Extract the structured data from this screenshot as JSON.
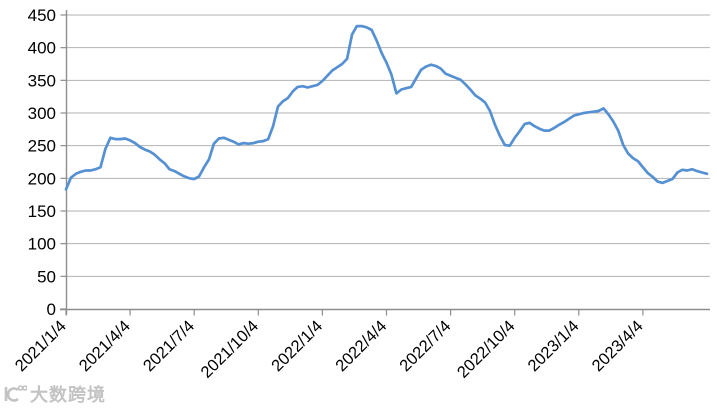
{
  "watermark": {
    "text": "大数跨境",
    "logo_icon": "dashu-kuajing-logo"
  },
  "chart_data": {
    "type": "line",
    "title": "",
    "legend_position": "none",
    "grid": true,
    "x_frequency": "weekly",
    "x_start": "2021/1/4",
    "x_end": "2023/6/26",
    "ylim": [
      0,
      450
    ],
    "yticks": [
      0,
      50,
      100,
      150,
      200,
      250,
      300,
      350,
      400,
      450
    ],
    "xticks": [
      {
        "label": "2021/1/4",
        "index": 0
      },
      {
        "label": "2021/4/4",
        "index": 13
      },
      {
        "label": "2021/7/4",
        "index": 26
      },
      {
        "label": "2021/10/4",
        "index": 39
      },
      {
        "label": "2022/1/4",
        "index": 52
      },
      {
        "label": "2022/4/4",
        "index": 65
      },
      {
        "label": "2022/7/4",
        "index": 78
      },
      {
        "label": "2022/10/4",
        "index": 91
      },
      {
        "label": "2023/1/4",
        "index": 104
      },
      {
        "label": "2023/4/4",
        "index": 117
      }
    ],
    "values": [
      183,
      201,
      207,
      210,
      212,
      212,
      214,
      217,
      245,
      262,
      260,
      260,
      261,
      258,
      254,
      248,
      244,
      241,
      236,
      229,
      223,
      214,
      211,
      207,
      203,
      200,
      199,
      203,
      217,
      229,
      253,
      261,
      262,
      259,
      256,
      252,
      254,
      253,
      254,
      256,
      257,
      260,
      280,
      310,
      318,
      323,
      333,
      340,
      341,
      339,
      341,
      343,
      349,
      357,
      365,
      370,
      375,
      383,
      420,
      433,
      433,
      431,
      427,
      411,
      392,
      377,
      359,
      330,
      336,
      338,
      340,
      353,
      366,
      371,
      374,
      372,
      368,
      360,
      357,
      354,
      351,
      344,
      336,
      327,
      322,
      316,
      303,
      282,
      265,
      251,
      250,
      262,
      272,
      283,
      285,
      280,
      276,
      273,
      273,
      277,
      282,
      286,
      291,
      296,
      298,
      300,
      301,
      302,
      303,
      307,
      298,
      287,
      273,
      251,
      238,
      231,
      226,
      217,
      208,
      202,
      195,
      193,
      196,
      199,
      209,
      213,
      212,
      214,
      211,
      209,
      207
    ],
    "series_color": "#5590D2",
    "gridline_color": "#b2b2b2",
    "axis_color": "#8e8e8e",
    "label_color": "#000000",
    "background_color": "#ffffff"
  }
}
